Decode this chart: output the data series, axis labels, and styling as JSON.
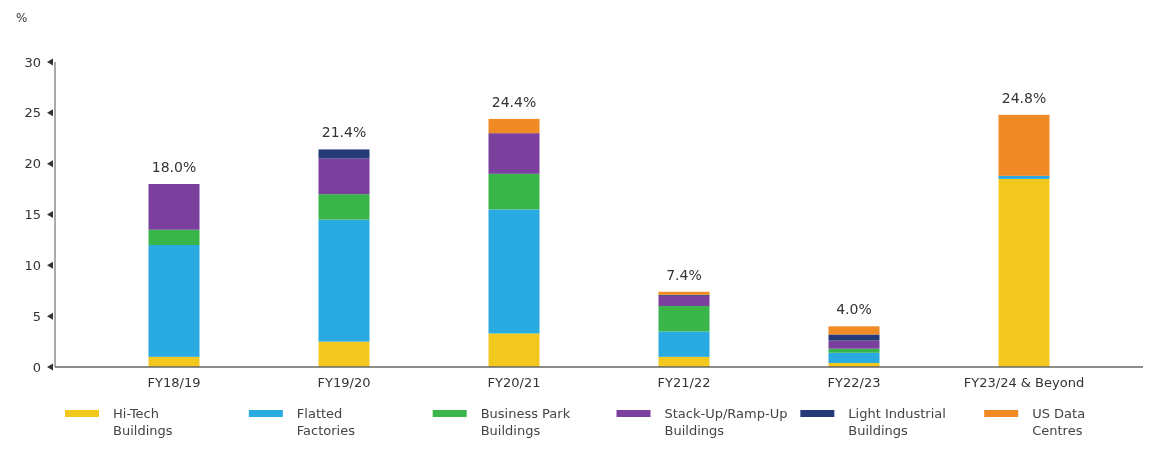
{
  "chart_data": {
    "type": "bar",
    "stacked": true,
    "ylabel": "%",
    "categories": [
      "FY18/19",
      "FY19/20",
      "FY20/21",
      "FY21/22",
      "FY22/23",
      "FY23/24 & Beyond"
    ],
    "series": [
      {
        "name": "Hi-Tech Buildings",
        "color": "#f2c81e",
        "values": [
          1.0,
          2.5,
          3.3,
          1.0,
          0.4,
          18.5
        ]
      },
      {
        "name": "Flatted Factories",
        "color": "#29abe2",
        "values": [
          11.0,
          12.0,
          12.2,
          2.5,
          1.0,
          0.3
        ]
      },
      {
        "name": "Business Park Buildings",
        "color": "#3ab54a",
        "values": [
          1.5,
          2.5,
          3.5,
          2.5,
          0.4,
          0
        ]
      },
      {
        "name": "Stack-Up/Ramp-Up Buildings",
        "color": "#7b3f9e",
        "values": [
          4.5,
          3.5,
          4.0,
          1.0,
          0.8,
          0
        ]
      },
      {
        "name": "Light Industrial Buildings",
        "color": "#263a7a",
        "values": [
          0,
          0.9,
          0,
          0.1,
          0.6,
          0
        ]
      },
      {
        "name": "US Data Centres",
        "color": "#f08a24",
        "values": [
          0,
          0,
          1.4,
          0.3,
          0.8,
          6.0
        ]
      }
    ],
    "totals": [
      "18.0%",
      "21.4%",
      "24.4%",
      "7.4%",
      "4.0%",
      "24.8%"
    ],
    "ylim": [
      0,
      30
    ],
    "yticks": [
      0,
      5,
      10,
      15,
      20,
      25,
      30
    ],
    "legend": "bottom",
    "grid": false
  }
}
